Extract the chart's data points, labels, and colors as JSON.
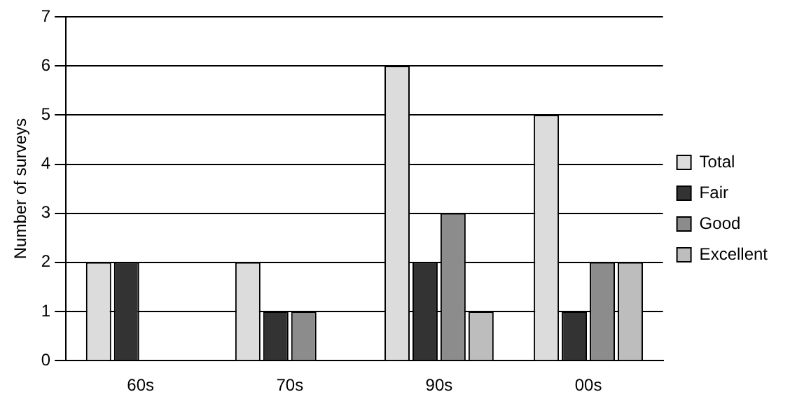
{
  "chart_data": {
    "type": "bar",
    "ylabel": "Number of surveys",
    "categories": [
      "60s",
      "70s",
      "90s",
      "00s"
    ],
    "series": [
      {
        "name": "Total",
        "color": "#dcdcdc",
        "values": [
          2,
          2,
          6,
          5
        ]
      },
      {
        "name": "Fair",
        "color": "#333333",
        "values": [
          2,
          1,
          2,
          1
        ]
      },
      {
        "name": "Good",
        "color": "#8c8c8c",
        "values": [
          0,
          1,
          3,
          2
        ]
      },
      {
        "name": "Excellent",
        "color": "#bdbdbd",
        "values": [
          0,
          0,
          1,
          2
        ]
      }
    ],
    "ylim": [
      0,
      7
    ],
    "yticks": [
      0,
      1,
      2,
      3,
      4,
      5,
      6,
      7
    ],
    "grid": "y",
    "legend": "right"
  }
}
